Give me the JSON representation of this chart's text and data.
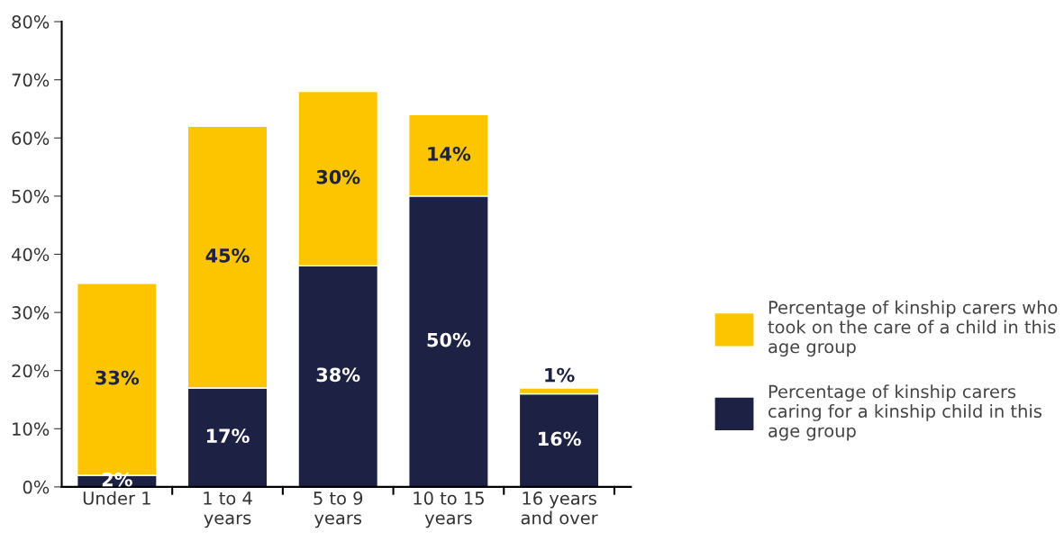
{
  "chart_data": {
    "type": "bar",
    "stacked": true,
    "categories": [
      "Under 1",
      "1 to 4\nyears",
      "5 to 9\nyears",
      "10 to 15\nyears",
      "16 years\nand over"
    ],
    "series": [
      {
        "name": "Percentage of kinship carers\ncaring for a kinship child in this\nage group",
        "color": "#1d2143",
        "values": [
          2,
          17,
          38,
          50,
          16
        ],
        "value_labels": [
          "2%",
          "17%",
          "38%",
          "50%",
          "16%"
        ]
      },
      {
        "name": "Percentage of kinship carers who\ntook on the care of a child in this\nage group",
        "color": "#fdc500",
        "values": [
          33,
          45,
          30,
          14,
          1
        ],
        "value_labels": [
          "33%",
          "45%",
          "30%",
          "14%",
          "1%"
        ]
      }
    ],
    "ylim": [
      0,
      80
    ],
    "yticks": [
      {
        "value": 0,
        "label": "0%"
      },
      {
        "value": 10,
        "label": "10%"
      },
      {
        "value": 20,
        "label": "20%"
      },
      {
        "value": 30,
        "label": "30%"
      },
      {
        "value": 40,
        "label": "40%"
      },
      {
        "value": 50,
        "label": "50%"
      },
      {
        "value": 60,
        "label": "60%"
      },
      {
        "value": 70,
        "label": "70%"
      },
      {
        "value": 80,
        "label": "80%"
      }
    ],
    "grid": false,
    "legend": "right"
  }
}
